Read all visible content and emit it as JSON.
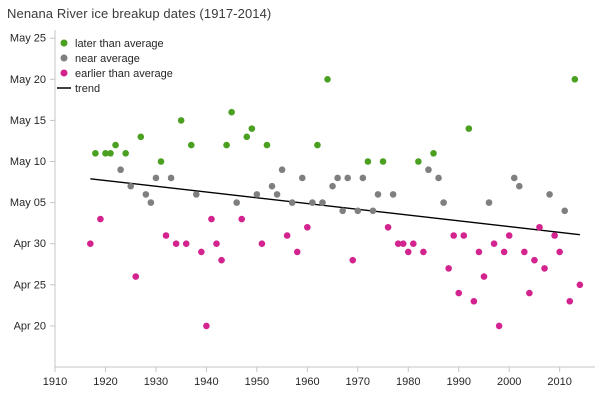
{
  "chart_data": {
    "type": "scatter",
    "title": "Nenana River ice breakup dates (1917-2014)",
    "xlabel": "",
    "ylabel": "",
    "x_domain": [
      1910,
      2017
    ],
    "y_domain": [
      15,
      56
    ],
    "x_ticks": [
      1910,
      1920,
      1930,
      1940,
      1950,
      1960,
      1970,
      1980,
      1990,
      2000,
      2010
    ],
    "y_ticks": [
      "May 25",
      "May 20",
      "May 15",
      "May 10",
      "May 05",
      "Apr 30",
      "Apr 25",
      "Apr 20"
    ],
    "grid": false,
    "legend_position": "top-left-inside",
    "trend": {
      "years": [
        1917,
        2014
      ],
      "values": [
        37.9,
        31.1
      ]
    },
    "points": [
      {
        "year": 1917,
        "date": "Apr 30",
        "cat": "earlier"
      },
      {
        "year": 1918,
        "date": "May 11",
        "cat": "later"
      },
      {
        "year": 1919,
        "date": "May 3",
        "cat": "earlier"
      },
      {
        "year": 1920,
        "date": "May 11",
        "cat": "later"
      },
      {
        "year": 1921,
        "date": "May 11",
        "cat": "later"
      },
      {
        "year": 1922,
        "date": "May 12",
        "cat": "later"
      },
      {
        "year": 1923,
        "date": "May 9",
        "cat": "near"
      },
      {
        "year": 1924,
        "date": "May 11",
        "cat": "later"
      },
      {
        "year": 1925,
        "date": "May 7",
        "cat": "near"
      },
      {
        "year": 1926,
        "date": "Apr 26",
        "cat": "earlier"
      },
      {
        "year": 1927,
        "date": "May 13",
        "cat": "later"
      },
      {
        "year": 1928,
        "date": "May 6",
        "cat": "near"
      },
      {
        "year": 1929,
        "date": "May 5",
        "cat": "near"
      },
      {
        "year": 1930,
        "date": "May 8",
        "cat": "near"
      },
      {
        "year": 1931,
        "date": "May 10",
        "cat": "later"
      },
      {
        "year": 1932,
        "date": "May 1",
        "cat": "earlier"
      },
      {
        "year": 1933,
        "date": "May 8",
        "cat": "near"
      },
      {
        "year": 1934,
        "date": "Apr 30",
        "cat": "earlier"
      },
      {
        "year": 1935,
        "date": "May 15",
        "cat": "later"
      },
      {
        "year": 1936,
        "date": "Apr 30",
        "cat": "earlier"
      },
      {
        "year": 1937,
        "date": "May 12",
        "cat": "later"
      },
      {
        "year": 1938,
        "date": "May 6",
        "cat": "near"
      },
      {
        "year": 1939,
        "date": "Apr 29",
        "cat": "earlier"
      },
      {
        "year": 1940,
        "date": "Apr 20",
        "cat": "earlier"
      },
      {
        "year": 1941,
        "date": "May 3",
        "cat": "earlier"
      },
      {
        "year": 1942,
        "date": "Apr 30",
        "cat": "earlier"
      },
      {
        "year": 1943,
        "date": "Apr 28",
        "cat": "earlier"
      },
      {
        "year": 1944,
        "date": "May 12",
        "cat": "later"
      },
      {
        "year": 1945,
        "date": "May 16",
        "cat": "later"
      },
      {
        "year": 1946,
        "date": "May 5",
        "cat": "near"
      },
      {
        "year": 1947,
        "date": "May 3",
        "cat": "earlier"
      },
      {
        "year": 1948,
        "date": "May 13",
        "cat": "later"
      },
      {
        "year": 1949,
        "date": "May 14",
        "cat": "later"
      },
      {
        "year": 1950,
        "date": "May 6",
        "cat": "near"
      },
      {
        "year": 1951,
        "date": "Apr 30",
        "cat": "earlier"
      },
      {
        "year": 1952,
        "date": "May 12",
        "cat": "later"
      },
      {
        "year": 1953,
        "date": "May 7",
        "cat": "near"
      },
      {
        "year": 1954,
        "date": "May 6",
        "cat": "near"
      },
      {
        "year": 1955,
        "date": "May 9",
        "cat": "near"
      },
      {
        "year": 1956,
        "date": "May 1",
        "cat": "earlier"
      },
      {
        "year": 1957,
        "date": "May 5",
        "cat": "near"
      },
      {
        "year": 1958,
        "date": "Apr 29",
        "cat": "earlier"
      },
      {
        "year": 1959,
        "date": "May 8",
        "cat": "near"
      },
      {
        "year": 1960,
        "date": "May 2",
        "cat": "earlier"
      },
      {
        "year": 1961,
        "date": "May 5",
        "cat": "near"
      },
      {
        "year": 1962,
        "date": "May 12",
        "cat": "later"
      },
      {
        "year": 1963,
        "date": "May 5",
        "cat": "near"
      },
      {
        "year": 1964,
        "date": "May 20",
        "cat": "later"
      },
      {
        "year": 1965,
        "date": "May 7",
        "cat": "near"
      },
      {
        "year": 1966,
        "date": "May 8",
        "cat": "near"
      },
      {
        "year": 1967,
        "date": "May 4",
        "cat": "near"
      },
      {
        "year": 1968,
        "date": "May 8",
        "cat": "near"
      },
      {
        "year": 1969,
        "date": "Apr 28",
        "cat": "earlier"
      },
      {
        "year": 1970,
        "date": "May 4",
        "cat": "near"
      },
      {
        "year": 1971,
        "date": "May 8",
        "cat": "near"
      },
      {
        "year": 1972,
        "date": "May 10",
        "cat": "later"
      },
      {
        "year": 1973,
        "date": "May 4",
        "cat": "near"
      },
      {
        "year": 1974,
        "date": "May 6",
        "cat": "near"
      },
      {
        "year": 1975,
        "date": "May 10",
        "cat": "later"
      },
      {
        "year": 1976,
        "date": "May 2",
        "cat": "earlier"
      },
      {
        "year": 1977,
        "date": "May 6",
        "cat": "near"
      },
      {
        "year": 1978,
        "date": "Apr 30",
        "cat": "earlier"
      },
      {
        "year": 1979,
        "date": "Apr 30",
        "cat": "earlier"
      },
      {
        "year": 1980,
        "date": "Apr 29",
        "cat": "earlier"
      },
      {
        "year": 1981,
        "date": "Apr 30",
        "cat": "earlier"
      },
      {
        "year": 1982,
        "date": "May 10",
        "cat": "later"
      },
      {
        "year": 1983,
        "date": "Apr 29",
        "cat": "earlier"
      },
      {
        "year": 1984,
        "date": "May 9",
        "cat": "near"
      },
      {
        "year": 1985,
        "date": "May 11",
        "cat": "later"
      },
      {
        "year": 1986,
        "date": "May 8",
        "cat": "near"
      },
      {
        "year": 1987,
        "date": "May 5",
        "cat": "near"
      },
      {
        "year": 1988,
        "date": "Apr 27",
        "cat": "earlier"
      },
      {
        "year": 1989,
        "date": "May 1",
        "cat": "earlier"
      },
      {
        "year": 1990,
        "date": "Apr 24",
        "cat": "earlier"
      },
      {
        "year": 1991,
        "date": "May 1",
        "cat": "earlier"
      },
      {
        "year": 1992,
        "date": "May 14",
        "cat": "later"
      },
      {
        "year": 1993,
        "date": "Apr 23",
        "cat": "earlier"
      },
      {
        "year": 1994,
        "date": "Apr 29",
        "cat": "earlier"
      },
      {
        "year": 1995,
        "date": "Apr 26",
        "cat": "earlier"
      },
      {
        "year": 1996,
        "date": "May 5",
        "cat": "near"
      },
      {
        "year": 1997,
        "date": "Apr 30",
        "cat": "earlier"
      },
      {
        "year": 1998,
        "date": "Apr 20",
        "cat": "earlier"
      },
      {
        "year": 1999,
        "date": "Apr 29",
        "cat": "earlier"
      },
      {
        "year": 2000,
        "date": "May 1",
        "cat": "earlier"
      },
      {
        "year": 2001,
        "date": "May 8",
        "cat": "near"
      },
      {
        "year": 2002,
        "date": "May 7",
        "cat": "near"
      },
      {
        "year": 2003,
        "date": "Apr 29",
        "cat": "earlier"
      },
      {
        "year": 2004,
        "date": "Apr 24",
        "cat": "earlier"
      },
      {
        "year": 2005,
        "date": "Apr 28",
        "cat": "earlier"
      },
      {
        "year": 2006,
        "date": "May 2",
        "cat": "earlier"
      },
      {
        "year": 2007,
        "date": "Apr 27",
        "cat": "earlier"
      },
      {
        "year": 2008,
        "date": "May 6",
        "cat": "near"
      },
      {
        "year": 2009,
        "date": "May 1",
        "cat": "earlier"
      },
      {
        "year": 2010,
        "date": "Apr 29",
        "cat": "earlier"
      },
      {
        "year": 2011,
        "date": "May 4",
        "cat": "near"
      },
      {
        "year": 2012,
        "date": "Apr 23",
        "cat": "earlier"
      },
      {
        "year": 2013,
        "date": "May 20",
        "cat": "later"
      },
      {
        "year": 2014,
        "date": "Apr 25",
        "cat": "earlier"
      }
    ]
  },
  "legend": [
    {
      "key": "later",
      "label": "later than average",
      "type": "dot"
    },
    {
      "key": "near",
      "label": "near average",
      "type": "dot"
    },
    {
      "key": "earlier",
      "label": "earlier than average",
      "type": "dot"
    },
    {
      "key": "trend",
      "label": "trend",
      "type": "line"
    }
  ],
  "colors": {
    "later": "#4ba021",
    "near": "#7f7f7f",
    "earlier": "#d3238e",
    "trend": "#000000",
    "axis": "#c4c4c4",
    "tick_text": "#262626",
    "title_text": "#3a3a3a"
  }
}
